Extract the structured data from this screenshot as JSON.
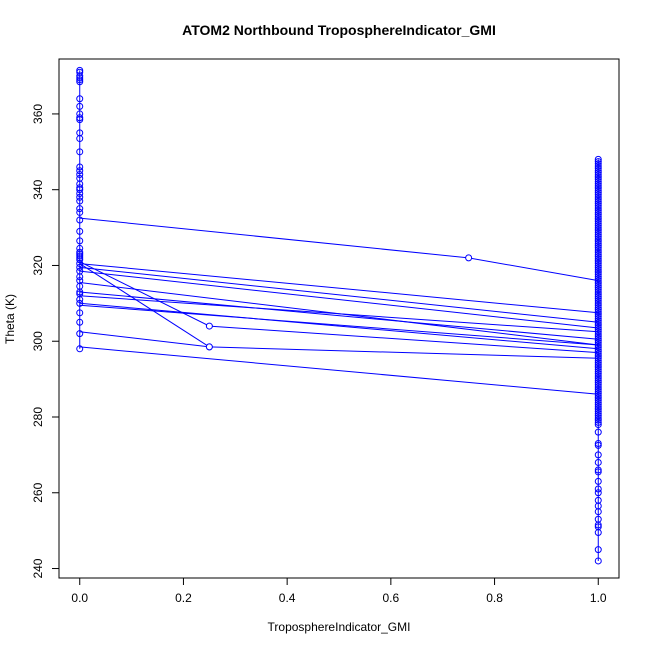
{
  "chart_data": {
    "type": "scatter",
    "title": "ATOM2 Northbound TroposphereIndicator_GMI",
    "xlabel": "TroposphereIndicator_GMI",
    "ylabel": "Theta (K)",
    "xlim": [
      -0.04,
      1.04
    ],
    "ylim": [
      237.5,
      374.5
    ],
    "x_ticks": [
      0.0,
      0.2,
      0.4,
      0.6,
      0.8,
      1.0
    ],
    "x_tick_labels": [
      "0.0",
      "0.2",
      "0.4",
      "0.6",
      "0.8",
      "1.0"
    ],
    "y_ticks": [
      240,
      260,
      280,
      300,
      320,
      340,
      360
    ],
    "y_tick_labels": [
      "240",
      "260",
      "280",
      "300",
      "320",
      "340",
      "360"
    ],
    "grid": false,
    "legend": "none",
    "color": "#0000ff",
    "left_column": {
      "x": 0.0,
      "points": [
        371.5,
        371,
        370,
        369.5,
        369,
        368.5,
        364,
        362,
        360,
        359,
        358.5,
        355,
        353.5,
        350,
        346,
        345,
        344,
        343,
        341.5,
        340.5,
        340,
        339,
        338,
        337,
        335,
        334,
        332,
        329,
        326.5,
        324.5,
        323.5,
        323,
        322.5,
        322,
        321.5,
        320.5,
        319.5,
        318.5,
        317,
        316,
        314.5,
        313,
        312.5,
        311,
        310,
        307.5,
        305,
        302,
        298
      ]
    },
    "right_column": {
      "x": 1.0,
      "min": 278,
      "max": 348,
      "outliers": [
        276,
        273,
        272.5,
        270,
        268,
        266,
        265.5,
        263,
        261,
        260,
        258,
        256.5,
        255,
        253,
        251.5,
        251,
        249.5,
        245,
        242
      ]
    },
    "paths": [
      [
        [
          0.0,
          332.5
        ],
        [
          0.75,
          322
        ],
        [
          1.0,
          316
        ]
      ],
      [
        [
          0.0,
          302.5
        ],
        [
          0.25,
          298.5
        ],
        [
          1.0,
          295.5
        ]
      ],
      [
        [
          0.0,
          298.5
        ],
        [
          1.0,
          286
        ]
      ],
      [
        [
          0.0,
          321
        ],
        [
          0.25,
          304
        ],
        [
          1.0,
          297
        ]
      ],
      [
        [
          0.0,
          320.5
        ],
        [
          0.25,
          298.5
        ]
      ],
      [
        [
          0.0,
          320.5
        ],
        [
          1.0,
          307.5
        ]
      ],
      [
        [
          0.0,
          319.5
        ],
        [
          1.0,
          305
        ]
      ],
      [
        [
          0.0,
          318.5
        ],
        [
          1.0,
          303.5
        ]
      ],
      [
        [
          0.0,
          315.5
        ],
        [
          1.0,
          299
        ]
      ],
      [
        [
          0.0,
          313
        ],
        [
          1.0,
          300.5
        ]
      ],
      [
        [
          0.0,
          312
        ],
        [
          1.0,
          302.5
        ]
      ],
      [
        [
          0.0,
          310
        ],
        [
          1.0,
          298
        ]
      ],
      [
        [
          0.0,
          309.5
        ],
        [
          1.0,
          299
        ]
      ]
    ]
  }
}
